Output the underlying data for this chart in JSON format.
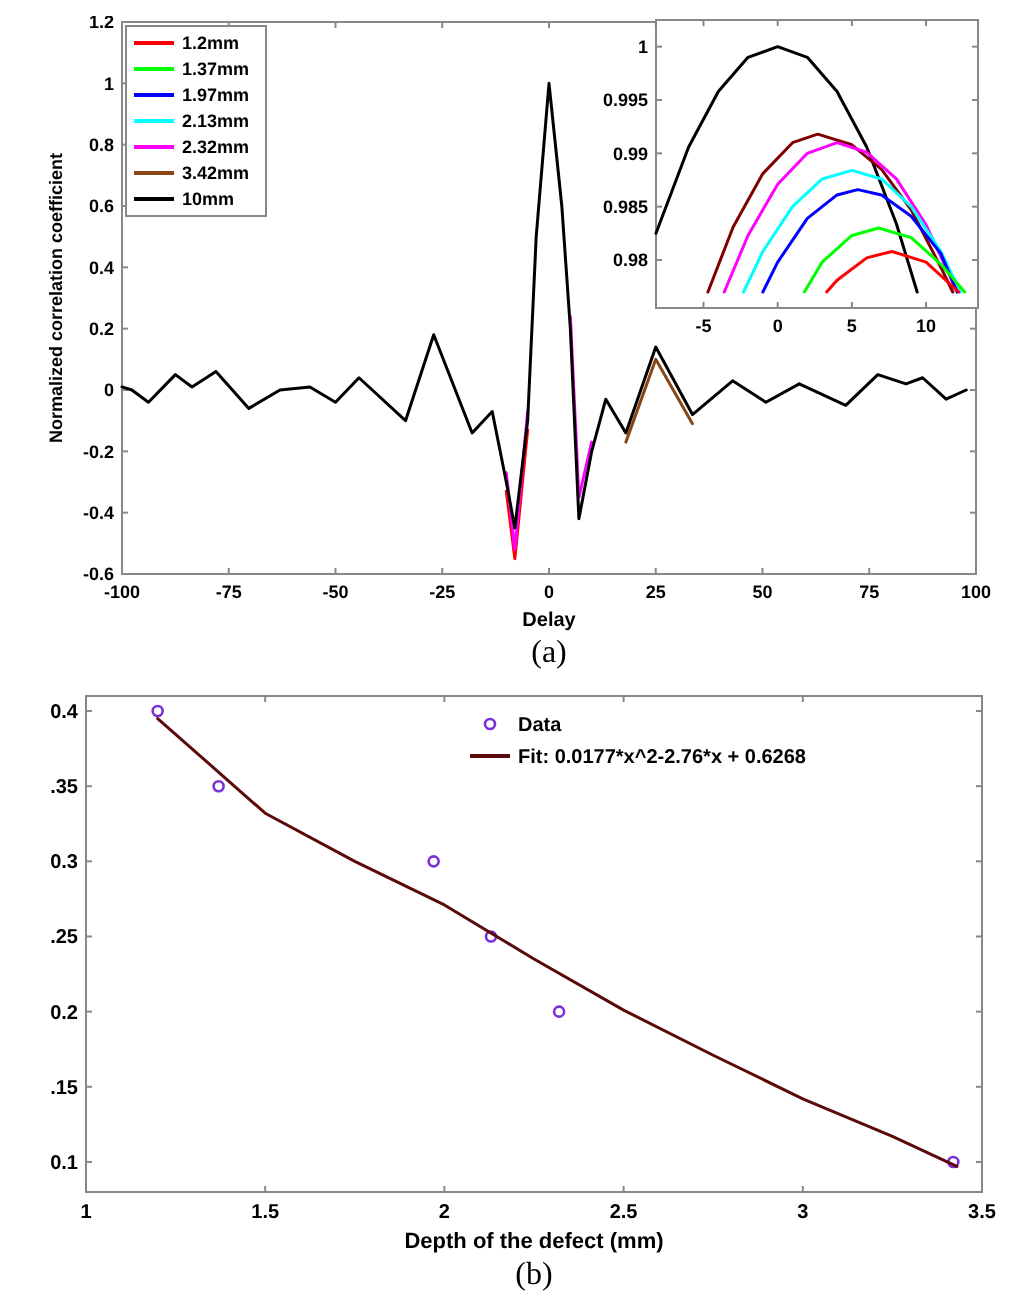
{
  "chart_data": [
    {
      "type": "line",
      "xlabel": "Delay",
      "ylabel": "Normalized correlation coefficient",
      "annotations": [
        "(a)"
      ],
      "xlim": [
        -100,
        100
      ],
      "xticks": [
        -100,
        -75,
        -50,
        -25,
        0,
        25,
        50,
        75,
        100
      ],
      "ylim": [
        -0.6,
        1.2
      ],
      "yticks": [
        -0.6,
        -0.4,
        -0.2,
        0,
        0.2,
        0.4,
        0.6,
        0.8,
        1,
        1.2
      ],
      "grid": false,
      "legend": "top left",
      "marker": "none",
      "line_style": "solid",
      "x": [
        -100,
        -97.7,
        -93.8,
        -87.5,
        -83.6,
        -78,
        -70.3,
        -63,
        -56,
        -50,
        -44.5,
        -33.6,
        -27,
        -18,
        -13.3,
        -10,
        -8,
        -5,
        -3,
        0,
        3,
        5,
        7,
        10,
        13.3,
        18,
        25,
        33.6,
        43,
        50.8,
        58.6,
        69.5,
        77,
        83.6,
        87.5,
        93,
        97.7
      ],
      "series": [
        {
          "name": "1.2mm",
          "color": "#ff0000",
          "values": [
            null,
            null,
            null,
            null,
            null,
            null,
            null,
            null,
            null,
            null,
            null,
            null,
            null,
            null,
            null,
            -0.33,
            -0.55,
            -0.13,
            null,
            null,
            null,
            null,
            null,
            null,
            null,
            null,
            null,
            null,
            null,
            null,
            null,
            null,
            null,
            null,
            null,
            null,
            null
          ]
        },
        {
          "name": "1.37mm",
          "color": "#00ff00",
          "values": [
            null,
            null,
            null,
            null,
            null,
            null,
            null,
            null,
            null,
            null,
            null,
            null,
            null,
            null,
            null,
            null,
            null,
            null,
            null,
            null,
            null,
            null,
            null,
            null,
            null,
            null,
            null,
            null,
            null,
            null,
            null,
            null,
            null,
            null,
            null,
            null,
            null
          ]
        },
        {
          "name": "1.97mm",
          "color": "#0000ff",
          "values": [
            null,
            null,
            null,
            null,
            null,
            null,
            null,
            null,
            null,
            null,
            null,
            null,
            null,
            null,
            null,
            null,
            null,
            null,
            null,
            null,
            null,
            null,
            null,
            null,
            null,
            null,
            null,
            null,
            null,
            null,
            null,
            null,
            null,
            null,
            null,
            null,
            null
          ]
        },
        {
          "name": "2.13mm",
          "color": "#00ffff",
          "values": [
            null,
            null,
            null,
            null,
            null,
            null,
            null,
            null,
            null,
            null,
            null,
            null,
            null,
            null,
            null,
            null,
            null,
            null,
            null,
            null,
            null,
            null,
            null,
            null,
            null,
            null,
            null,
            null,
            null,
            null,
            null,
            null,
            null,
            null,
            null,
            null,
            null
          ]
        },
        {
          "name": "2.32mm",
          "color": "#ff00ff",
          "values": [
            null,
            null,
            null,
            null,
            null,
            null,
            null,
            null,
            null,
            null,
            null,
            null,
            null,
            null,
            null,
            -0.27,
            -0.52,
            -0.07,
            null,
            null,
            null,
            0.24,
            -0.35,
            -0.17,
            null,
            null,
            null,
            null,
            null,
            null,
            null,
            null,
            null,
            null,
            null,
            null,
            null
          ]
        },
        {
          "name": "3.42mm",
          "color": "#8b4513",
          "values": [
            null,
            null,
            null,
            null,
            null,
            null,
            null,
            null,
            null,
            null,
            null,
            null,
            null,
            null,
            null,
            null,
            null,
            null,
            null,
            null,
            null,
            null,
            null,
            null,
            null,
            -0.17,
            0.1,
            -0.11,
            null,
            null,
            null,
            null,
            null,
            null,
            null,
            null,
            null
          ]
        },
        {
          "name": "10mm",
          "color": "#000000",
          "values": [
            0.01,
            0,
            -0.04,
            0.05,
            0.01,
            0.06,
            -0.06,
            0,
            0.01,
            -0.04,
            0.04,
            -0.1,
            0.18,
            -0.14,
            -0.07,
            -0.3,
            -0.45,
            -0.1,
            0.5,
            1,
            0.6,
            0.2,
            -0.42,
            -0.2,
            -0.03,
            -0.14,
            0.14,
            -0.08,
            0.03,
            -0.04,
            0.02,
            -0.05,
            0.05,
            0.02,
            0.04,
            -0.03,
            0
          ]
        }
      ]
    },
    {
      "type": "line",
      "xlim": [
        -8.2,
        13.5
      ],
      "xticks": [
        -5,
        0,
        5,
        10
      ],
      "ylim": [
        0.9755,
        1.0025
      ],
      "yticks": [
        0.98,
        0.985,
        0.99,
        0.995,
        1
      ],
      "grid": false,
      "marker": "none",
      "line_style": "solid",
      "series": [
        {
          "color": "#000000",
          "x": [
            -8.2,
            -6,
            -4,
            -2,
            0,
            2,
            4,
            6,
            8,
            9.4
          ],
          "values": [
            0.9825,
            0.9906,
            0.9958,
            0.999,
            1,
            0.999,
            0.9958,
            0.9906,
            0.9834,
            0.977
          ]
        },
        {
          "color": "#800000",
          "x": [
            -4.7,
            -3,
            -1,
            1,
            2.7,
            5,
            7,
            9,
            11,
            11.8
          ],
          "values": [
            0.977,
            0.9831,
            0.9881,
            0.991,
            0.9918,
            0.9908,
            0.9885,
            0.9847,
            0.9793,
            0.977
          ]
        },
        {
          "color": "#ff00ff",
          "x": [
            -3.6,
            -2,
            0,
            2,
            4,
            6,
            8,
            10,
            12.1
          ],
          "values": [
            0.977,
            0.9823,
            0.9871,
            0.99,
            0.991,
            0.9901,
            0.9876,
            0.9833,
            0.977
          ]
        },
        {
          "color": "#00ffff",
          "x": [
            -2.3,
            -1,
            1,
            3,
            5,
            7,
            9,
            11,
            12.3
          ],
          "values": [
            0.977,
            0.9808,
            0.985,
            0.9876,
            0.9884,
            0.9876,
            0.985,
            0.9808,
            0.977
          ]
        },
        {
          "color": "#0000ff",
          "x": [
            -1,
            0,
            2,
            4,
            5.4,
            7,
            9,
            11,
            12.1
          ],
          "values": [
            0.977,
            0.9798,
            0.9839,
            0.9861,
            0.9866,
            0.9861,
            0.9841,
            0.9806,
            0.977
          ]
        },
        {
          "color": "#00ff00",
          "x": [
            1.8,
            3,
            5,
            6.8,
            9,
            11,
            12.6
          ],
          "values": [
            0.977,
            0.9798,
            0.9823,
            0.983,
            0.9821,
            0.9796,
            0.977
          ]
        },
        {
          "color": "#ff0000",
          "x": [
            3.3,
            4,
            6,
            7.7,
            10,
            12.2
          ],
          "values": [
            0.977,
            0.9781,
            0.9802,
            0.9808,
            0.9798,
            0.977
          ]
        }
      ]
    },
    {
      "type": "scatter",
      "xlabel": "Depth of the defect (mm)",
      "annotations": [
        "(b)"
      ],
      "xlim": [
        1,
        3.5
      ],
      "xticks": [
        1,
        1.5,
        2,
        2.5,
        3,
        3.5
      ],
      "ylim": [
        0.08,
        0.41
      ],
      "yticks": [
        {
          "value": 0.1,
          "label": "0.1"
        },
        {
          "value": 0.15,
          "label": ".15"
        },
        {
          "value": 0.2,
          "label": "0.2"
        },
        {
          "value": 0.25,
          "label": ".25"
        },
        {
          "value": 0.3,
          "label": "0.3"
        },
        {
          "value": 0.35,
          "label": ".35"
        },
        {
          "value": 0.4,
          "label": "0.4"
        }
      ],
      "grid": false,
      "legend": "top right",
      "marker": "circle",
      "series": [
        {
          "name": "Data",
          "color": "#7b2fd6",
          "x": [
            1.2,
            1.37,
            1.97,
            2.13,
            2.32,
            3.42
          ],
          "values": [
            0.4,
            0.35,
            0.3,
            0.25,
            0.2,
            0.1
          ]
        },
        {
          "name": "Fit: 0.0177*x^2-2.76*x + 0.6268",
          "type": "line",
          "marker": "none",
          "color": "#5a0a0a",
          "x": [
            1.2,
            1.5,
            1.75,
            2,
            2.25,
            2.5,
            2.75,
            3,
            3.25,
            3.43
          ],
          "values": [
            0.395,
            0.332,
            0.3,
            0.271,
            0.235,
            0.201,
            0.171,
            0.142,
            0.117,
            0.097
          ]
        }
      ]
    }
  ]
}
